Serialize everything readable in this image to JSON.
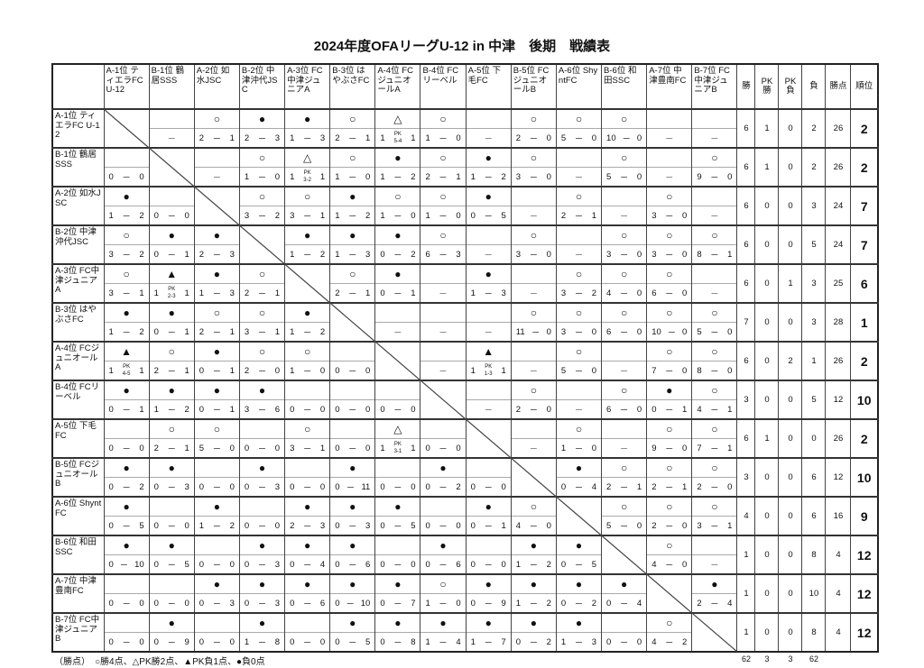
{
  "title": "2024年度OFAリーグU-12 in 中津　後期　戦績表",
  "teams": [
    "A-1位 ティエラFC U-12",
    "B-1位 鶴居SSS",
    "A-2位 如水JSC",
    "B-2位 中津沖代JSC",
    "A-3位 FC中津ジュニアA",
    "B-3位 はやぶさFC",
    "A-4位 FCジュニオールA",
    "B-4位 FCリーベル",
    "A-5位 下毛FC",
    "B-5位 FCジュニオールB",
    "A-6位 ShyntFC",
    "B-6位 和田SSC",
    "A-7位 中津豊南FC",
    "B-7位 FC中津ジュニアB"
  ],
  "summary_headers": [
    "勝",
    "PK勝",
    "PK負",
    "負",
    "勝点",
    "順位"
  ],
  "rows": [
    {
      "cells": [
        null,
        {
          "m": "",
          "s": "-"
        },
        {
          "m": "○",
          "s": "2-1"
        },
        {
          "m": "●",
          "s": "2-3"
        },
        {
          "m": "●",
          "s": "1-3"
        },
        {
          "m": "○",
          "s": "2-1"
        },
        {
          "m": "△",
          "s": "1-1",
          "pk": "5-4"
        },
        {
          "m": "○",
          "s": "1-0"
        },
        {
          "m": "",
          "s": "-"
        },
        {
          "m": "○",
          "s": "2-0"
        },
        {
          "m": "○",
          "s": "5-0"
        },
        {
          "m": "○",
          "s": "10-0"
        },
        {
          "m": "",
          "s": "-"
        },
        {
          "m": "",
          "s": "-"
        }
      ],
      "summary": [
        "6",
        "1",
        "0",
        "2",
        "26",
        "2"
      ]
    },
    {
      "cells": [
        {
          "m": "",
          "s": "0-0"
        },
        null,
        {
          "m": "",
          "s": "-"
        },
        {
          "m": "○",
          "s": "1-0"
        },
        {
          "m": "△",
          "s": "1-1",
          "pk": "3-2"
        },
        {
          "m": "○",
          "s": "1-0"
        },
        {
          "m": "●",
          "s": "1-2"
        },
        {
          "m": "○",
          "s": "2-1"
        },
        {
          "m": "●",
          "s": "1-2"
        },
        {
          "m": "○",
          "s": "3-0"
        },
        {
          "m": "",
          "s": "-"
        },
        {
          "m": "○",
          "s": "5-0"
        },
        {
          "m": "",
          "s": "-"
        },
        {
          "m": "○",
          "s": "9-0"
        }
      ],
      "summary": [
        "6",
        "1",
        "0",
        "2",
        "26",
        "2"
      ]
    },
    {
      "cells": [
        {
          "m": "●",
          "s": "1-2"
        },
        {
          "m": "",
          "s": "0-0"
        },
        null,
        {
          "m": "○",
          "s": "3-2"
        },
        {
          "m": "○",
          "s": "3-1"
        },
        {
          "m": "●",
          "s": "1-2"
        },
        {
          "m": "○",
          "s": "1-0"
        },
        {
          "m": "○",
          "s": "1-0"
        },
        {
          "m": "●",
          "s": "0-5"
        },
        {
          "m": "",
          "s": "-"
        },
        {
          "m": "○",
          "s": "2-1"
        },
        {
          "m": "",
          "s": "-"
        },
        {
          "m": "○",
          "s": "3-0"
        },
        {
          "m": "",
          "s": "-"
        }
      ],
      "summary": [
        "6",
        "0",
        "0",
        "3",
        "24",
        "7"
      ]
    },
    {
      "cells": [
        {
          "m": "○",
          "s": "3-2"
        },
        {
          "m": "●",
          "s": "0-1"
        },
        {
          "m": "●",
          "s": "2-3"
        },
        null,
        {
          "m": "●",
          "s": "1-2"
        },
        {
          "m": "●",
          "s": "1-3"
        },
        {
          "m": "●",
          "s": "0-2"
        },
        {
          "m": "○",
          "s": "6-3"
        },
        {
          "m": "",
          "s": "-"
        },
        {
          "m": "○",
          "s": "3-0"
        },
        {
          "m": "",
          "s": "-"
        },
        {
          "m": "○",
          "s": "3-0"
        },
        {
          "m": "○",
          "s": "3-0"
        },
        {
          "m": "○",
          "s": "8-1"
        }
      ],
      "summary": [
        "6",
        "0",
        "0",
        "5",
        "24",
        "7"
      ]
    },
    {
      "cells": [
        {
          "m": "○",
          "s": "3-1"
        },
        {
          "m": "▲",
          "s": "1-1",
          "pk": "2-3"
        },
        {
          "m": "●",
          "s": "1-3"
        },
        {
          "m": "○",
          "s": "2-1"
        },
        null,
        {
          "m": "○",
          "s": "2-1"
        },
        {
          "m": "●",
          "s": "0-1"
        },
        {
          "m": "",
          "s": "-"
        },
        {
          "m": "●",
          "s": "1-3"
        },
        {
          "m": "",
          "s": "-"
        },
        {
          "m": "○",
          "s": "3-2"
        },
        {
          "m": "○",
          "s": "4-0"
        },
        {
          "m": "○",
          "s": "6-0"
        },
        {
          "m": "",
          "s": "-"
        }
      ],
      "summary": [
        "6",
        "0",
        "1",
        "3",
        "25",
        "6"
      ]
    },
    {
      "cells": [
        {
          "m": "●",
          "s": "1-2"
        },
        {
          "m": "●",
          "s": "0-1"
        },
        {
          "m": "○",
          "s": "2-1"
        },
        {
          "m": "○",
          "s": "3-1"
        },
        {
          "m": "●",
          "s": "1-2"
        },
        null,
        {
          "m": "",
          "s": "-"
        },
        {
          "m": "",
          "s": "-"
        },
        {
          "m": "",
          "s": "-"
        },
        {
          "m": "○",
          "s": "11-0"
        },
        {
          "m": "○",
          "s": "3-0"
        },
        {
          "m": "○",
          "s": "6-0"
        },
        {
          "m": "○",
          "s": "10-0"
        },
        {
          "m": "○",
          "s": "5-0"
        }
      ],
      "summary": [
        "7",
        "0",
        "0",
        "3",
        "28",
        "1"
      ]
    },
    {
      "cells": [
        {
          "m": "▲",
          "s": "1-1",
          "pk": "4-5"
        },
        {
          "m": "○",
          "s": "2-1"
        },
        {
          "m": "●",
          "s": "0-1"
        },
        {
          "m": "○",
          "s": "2-0"
        },
        {
          "m": "○",
          "s": "1-0"
        },
        {
          "m": "",
          "s": "0-0"
        },
        null,
        {
          "m": "",
          "s": "-"
        },
        {
          "m": "▲",
          "s": "1-1",
          "pk": "1-3"
        },
        {
          "m": "",
          "s": "-"
        },
        {
          "m": "○",
          "s": "5-0"
        },
        {
          "m": "",
          "s": "-"
        },
        {
          "m": "○",
          "s": "7-0"
        },
        {
          "m": "○",
          "s": "8-0"
        }
      ],
      "summary": [
        "6",
        "0",
        "2",
        "1",
        "26",
        "2"
      ]
    },
    {
      "cells": [
        {
          "m": "●",
          "s": "0-1"
        },
        {
          "m": "●",
          "s": "1-2"
        },
        {
          "m": "●",
          "s": "0-1"
        },
        {
          "m": "●",
          "s": "3-6"
        },
        {
          "m": "",
          "s": "0-0"
        },
        {
          "m": "",
          "s": "0-0"
        },
        {
          "m": "",
          "s": "0-0"
        },
        null,
        {
          "m": "",
          "s": "-"
        },
        {
          "m": "○",
          "s": "2-0"
        },
        {
          "m": "",
          "s": "-"
        },
        {
          "m": "○",
          "s": "6-0"
        },
        {
          "m": "●",
          "s": "0-1"
        },
        {
          "m": "○",
          "s": "4-1"
        }
      ],
      "summary": [
        "3",
        "0",
        "0",
        "5",
        "12",
        "10"
      ]
    },
    {
      "cells": [
        {
          "m": "",
          "s": "0-0"
        },
        {
          "m": "○",
          "s": "2-1"
        },
        {
          "m": "○",
          "s": "5-0"
        },
        {
          "m": "",
          "s": "0-0"
        },
        {
          "m": "○",
          "s": "3-1"
        },
        {
          "m": "",
          "s": "0-0"
        },
        {
          "m": "△",
          "s": "1-1",
          "pk": "3-1"
        },
        {
          "m": "",
          "s": "0-0"
        },
        null,
        {
          "m": "",
          "s": "-"
        },
        {
          "m": "○",
          "s": "1-0"
        },
        {
          "m": "",
          "s": "-"
        },
        {
          "m": "○",
          "s": "9-0"
        },
        {
          "m": "○",
          "s": "7-1"
        }
      ],
      "summary": [
        "6",
        "1",
        "0",
        "0",
        "26",
        "2"
      ]
    },
    {
      "cells": [
        {
          "m": "●",
          "s": "0-2"
        },
        {
          "m": "●",
          "s": "0-3"
        },
        {
          "m": "",
          "s": "0-0"
        },
        {
          "m": "●",
          "s": "0-3"
        },
        {
          "m": "",
          "s": "0-0"
        },
        {
          "m": "●",
          "s": "0-11"
        },
        {
          "m": "",
          "s": "0-0"
        },
        {
          "m": "●",
          "s": "0-2"
        },
        {
          "m": "",
          "s": "0-0"
        },
        null,
        {
          "m": "●",
          "s": "0-4"
        },
        {
          "m": "○",
          "s": "2-1"
        },
        {
          "m": "○",
          "s": "2-1"
        },
        {
          "m": "○",
          "s": "2-0"
        }
      ],
      "summary": [
        "3",
        "0",
        "0",
        "6",
        "12",
        "10"
      ]
    },
    {
      "cells": [
        {
          "m": "●",
          "s": "0-5"
        },
        {
          "m": "",
          "s": "0-0"
        },
        {
          "m": "●",
          "s": "1-2"
        },
        {
          "m": "",
          "s": "0-0"
        },
        {
          "m": "●",
          "s": "2-3"
        },
        {
          "m": "●",
          "s": "0-3"
        },
        {
          "m": "●",
          "s": "0-5"
        },
        {
          "m": "",
          "s": "0-0"
        },
        {
          "m": "●",
          "s": "0-1"
        },
        {
          "m": "○",
          "s": "4-0"
        },
        null,
        {
          "m": "○",
          "s": "5-0"
        },
        {
          "m": "○",
          "s": "2-0"
        },
        {
          "m": "○",
          "s": "3-1"
        }
      ],
      "summary": [
        "4",
        "0",
        "0",
        "6",
        "16",
        "9"
      ]
    },
    {
      "cells": [
        {
          "m": "●",
          "s": "0-10"
        },
        {
          "m": "●",
          "s": "0-5"
        },
        {
          "m": "",
          "s": "0-0"
        },
        {
          "m": "●",
          "s": "0-3"
        },
        {
          "m": "●",
          "s": "0-4"
        },
        {
          "m": "●",
          "s": "0-6"
        },
        {
          "m": "",
          "s": "0-0"
        },
        {
          "m": "●",
          "s": "0-6"
        },
        {
          "m": "",
          "s": "0-0"
        },
        {
          "m": "●",
          "s": "1-2"
        },
        {
          "m": "●",
          "s": "0-5"
        },
        null,
        {
          "m": "○",
          "s": "4-0"
        },
        {
          "m": "",
          "s": "-"
        }
      ],
      "summary": [
        "1",
        "0",
        "0",
        "8",
        "4",
        "12"
      ]
    },
    {
      "cells": [
        {
          "m": "",
          "s": "0-0"
        },
        {
          "m": "",
          "s": "0-0"
        },
        {
          "m": "●",
          "s": "0-3"
        },
        {
          "m": "●",
          "s": "0-3"
        },
        {
          "m": "●",
          "s": "0-6"
        },
        {
          "m": "●",
          "s": "0-10"
        },
        {
          "m": "●",
          "s": "0-7"
        },
        {
          "m": "○",
          "s": "1-0"
        },
        {
          "m": "●",
          "s": "0-9"
        },
        {
          "m": "●",
          "s": "1-2"
        },
        {
          "m": "●",
          "s": "0-2"
        },
        {
          "m": "●",
          "s": "0-4"
        },
        null,
        {
          "m": "●",
          "s": "2-4"
        }
      ],
      "summary": [
        "1",
        "0",
        "0",
        "10",
        "4",
        "12"
      ]
    },
    {
      "cells": [
        {
          "m": "",
          "s": "0-0"
        },
        {
          "m": "●",
          "s": "0-9"
        },
        {
          "m": "",
          "s": "0-0"
        },
        {
          "m": "●",
          "s": "1-8"
        },
        {
          "m": "",
          "s": "0-0"
        },
        {
          "m": "●",
          "s": "0-5"
        },
        {
          "m": "●",
          "s": "0-8"
        },
        {
          "m": "●",
          "s": "1-4"
        },
        {
          "m": "●",
          "s": "1-7"
        },
        {
          "m": "●",
          "s": "0-2"
        },
        {
          "m": "●",
          "s": "1-3"
        },
        {
          "m": "",
          "s": "0-0"
        },
        {
          "m": "○",
          "s": "4-2"
        },
        null
      ],
      "summary": [
        "1",
        "0",
        "0",
        "8",
        "4",
        "12"
      ]
    }
  ],
  "totals": [
    "62",
    "3",
    "3",
    "62"
  ],
  "legend": "（勝点）　○勝4点、△PK勝2点、▲PK負1点、●負0点"
}
